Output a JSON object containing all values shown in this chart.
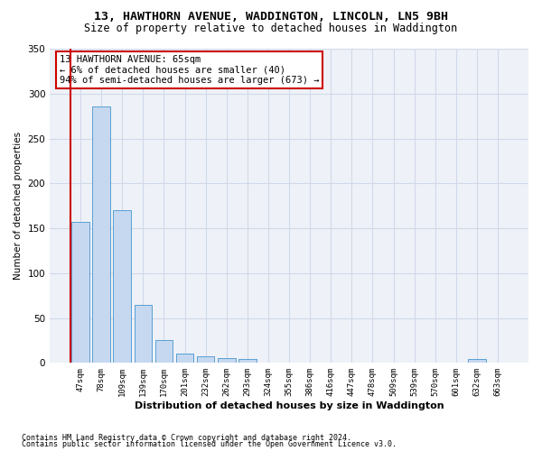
{
  "title": "13, HAWTHORN AVENUE, WADDINGTON, LINCOLN, LN5 9BH",
  "subtitle": "Size of property relative to detached houses in Waddington",
  "xlabel": "Distribution of detached houses by size in Waddington",
  "ylabel": "Number of detached properties",
  "categories": [
    "47sqm",
    "78sqm",
    "109sqm",
    "139sqm",
    "170sqm",
    "201sqm",
    "232sqm",
    "262sqm",
    "293sqm",
    "324sqm",
    "355sqm",
    "386sqm",
    "416sqm",
    "447sqm",
    "478sqm",
    "509sqm",
    "539sqm",
    "570sqm",
    "601sqm",
    "632sqm",
    "663sqm"
  ],
  "values": [
    157,
    286,
    170,
    65,
    25,
    10,
    7,
    5,
    4,
    0,
    0,
    0,
    0,
    0,
    0,
    0,
    0,
    0,
    0,
    4,
    0
  ],
  "bar_color": "#c5d8f0",
  "bar_edge_color": "#5a9fd4",
  "annotation_title": "13 HAWTHORN AVENUE: 65sqm",
  "annotation_line1": "← 6% of detached houses are smaller (40)",
  "annotation_line2": "94% of semi-detached houses are larger (673) →",
  "annotation_box_color": "#ffffff",
  "annotation_box_edge": "#cc0000",
  "vline_color": "#cc0000",
  "grid_color": "#d0d8e8",
  "bg_color": "#eef2f8",
  "ylim": [
    0,
    350
  ],
  "yticks": [
    0,
    50,
    100,
    150,
    200,
    250,
    300,
    350
  ],
  "footnote1": "Contains HM Land Registry data © Crown copyright and database right 2024.",
  "footnote2": "Contains public sector information licensed under the Open Government Licence v3.0."
}
